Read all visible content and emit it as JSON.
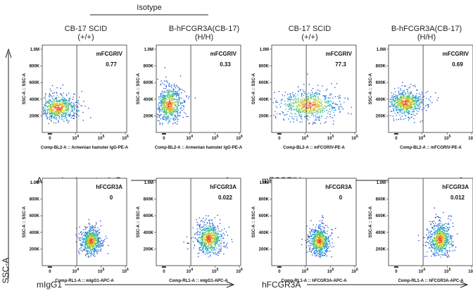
{
  "column_headers": [
    {
      "line1": "CB-17 SCID",
      "line2": "(+/+)"
    },
    {
      "line1": "B-hFCGR3A(CB-17)",
      "line2": "(H/H)"
    },
    {
      "line1": "CB-17 SCID",
      "line2": "(+/+)"
    },
    {
      "line1": "B-hFCGR3A(CB-17)",
      "line2": "(H/H)"
    }
  ],
  "isotype_label": "Isotype",
  "side_label": "SSC-A",
  "row_labels": [
    {
      "left": "Armenian hamster IgG",
      "right": "mFCGRIV"
    },
    {
      "left": "mIgG1",
      "right": "hFCGR3A"
    }
  ],
  "chart_data": [
    {
      "type": "scatter",
      "row": 0,
      "col": 0,
      "gate_name": "mFCGRIV",
      "percent": "0.77",
      "xlabel": "Comp-BL2-A :: Armenian hamster IgG-PE-A",
      "ylabel": "SSC-A :: SSC-A",
      "y_ticks": [
        "1.0M",
        "800K",
        "600K",
        "400K",
        "200K"
      ],
      "x_ticks": [
        "0",
        "10",
        "10",
        "10"
      ],
      "x_tick_exp": [
        "",
        "4",
        "5",
        "6"
      ],
      "population": {
        "cx": 0.3,
        "cy": 300000,
        "sx": 0.45,
        "sy": 90000
      }
    },
    {
      "type": "scatter",
      "row": 0,
      "col": 1,
      "gate_name": "mFCGRIV",
      "percent": "0.33",
      "xlabel": "Comp-BL2-A :: Armenian hamster IgG-PE-A",
      "ylabel": "SSC-A :: SSC-A",
      "y_ticks": [
        "1.0M",
        "800K",
        "600K",
        "400K",
        "200K"
      ],
      "x_ticks": [
        "0",
        "10",
        "10",
        "10"
      ],
      "x_tick_exp": [
        "",
        "4",
        "5",
        "6"
      ],
      "population": {
        "cx": 0.2,
        "cy": 340000,
        "sx": 0.28,
        "sy": 130000
      }
    },
    {
      "type": "scatter",
      "row": 0,
      "col": 2,
      "gate_name": "mFCGRIV",
      "percent": "77.3",
      "xlabel": "Comp-BL2-A :: mFCGRIV-PE-A",
      "ylabel": "SSC-A :: SSC-A",
      "y_ticks": [
        "1.0M",
        "800K",
        "600K",
        "400K",
        "200K"
      ],
      "x_ticks": [
        "0",
        "10",
        "10",
        "10"
      ],
      "x_tick_exp": [
        "",
        "4",
        "5",
        "6"
      ],
      "population": {
        "cx": 1.15,
        "cy": 330000,
        "sx": 0.7,
        "sy": 100000
      }
    },
    {
      "type": "scatter",
      "row": 0,
      "col": 3,
      "gate_name": "mFCGRIV",
      "percent": "0.69",
      "xlabel": "Comp-BL2-A :: mFCGRIV-PE-A",
      "ylabel": "SSC-A :: SSC-A",
      "y_ticks": [
        "1.0M",
        "800K",
        "600K",
        "400K",
        "200K"
      ],
      "x_ticks": [
        "0",
        "10",
        "10",
        "10"
      ],
      "x_tick_exp": [
        "",
        "4",
        "5",
        "6"
      ],
      "population": {
        "cx": 0.35,
        "cy": 360000,
        "sx": 0.4,
        "sy": 90000
      }
    },
    {
      "type": "scatter",
      "row": 1,
      "col": 0,
      "gate_name": "hFCGR3A",
      "percent": "0",
      "xlabel": "Comp-RL1-A :: mIgG1-APC-A",
      "ylabel": "SSC-A :: SSC-A",
      "y_ticks": [
        "1.0M",
        "800K",
        "600K",
        "400K",
        "200K"
      ],
      "x_ticks": [
        "0",
        "10",
        "10",
        "10"
      ],
      "x_tick_exp": [
        "",
        "4",
        "5",
        "6"
      ],
      "population": {
        "cx": 1.6,
        "cy": 300000,
        "sx": 0.22,
        "sy": 90000
      }
    },
    {
      "type": "scatter",
      "row": 1,
      "col": 1,
      "gate_name": "hFCGR3A",
      "percent": "0.022",
      "xlabel": "Comp-RL1-A :: mIgG1-APC-A",
      "ylabel": "SSC-A :: SSC-A",
      "y_ticks": [
        "1.0M",
        "800K",
        "600K",
        "400K",
        "200K"
      ],
      "x_ticks": [
        "0",
        "10",
        "10",
        "10"
      ],
      "x_tick_exp": [
        "",
        "4",
        "5",
        "6"
      ],
      "population": {
        "cx": 1.75,
        "cy": 330000,
        "sx": 0.3,
        "sy": 110000
      }
    },
    {
      "type": "scatter",
      "row": 1,
      "col": 2,
      "gate_name": "hFCGR3A",
      "percent": "0",
      "xlabel": "Comp-RL1-A :: hFCGR3A-APC-A",
      "ylabel": "SSC-A :: SSC-A",
      "y_ticks": [
        "1.0M",
        "800K",
        "600K",
        "400K",
        "200K"
      ],
      "x_ticks": [
        "0",
        "10",
        "10",
        "10"
      ],
      "x_tick_exp": [
        "",
        "4",
        "5",
        "6"
      ],
      "population": {
        "cx": 1.55,
        "cy": 300000,
        "sx": 0.22,
        "sy": 100000
      }
    },
    {
      "type": "scatter",
      "row": 1,
      "col": 3,
      "gate_name": "hFCGR3A",
      "percent": "0.012",
      "xlabel": "Comp-RL1-A :: hFCGR3A-APC-A",
      "ylabel": "SSC-A :: SSC-A",
      "y_ticks": [
        "1.0M",
        "800K",
        "600K",
        "400K",
        "200K"
      ],
      "x_ticks": [
        "0",
        "10",
        "10",
        "10"
      ],
      "x_tick_exp": [
        "",
        "4",
        "5",
        "6"
      ],
      "population": {
        "cx": 1.7,
        "cy": 320000,
        "sx": 0.25,
        "sy": 110000
      }
    }
  ]
}
